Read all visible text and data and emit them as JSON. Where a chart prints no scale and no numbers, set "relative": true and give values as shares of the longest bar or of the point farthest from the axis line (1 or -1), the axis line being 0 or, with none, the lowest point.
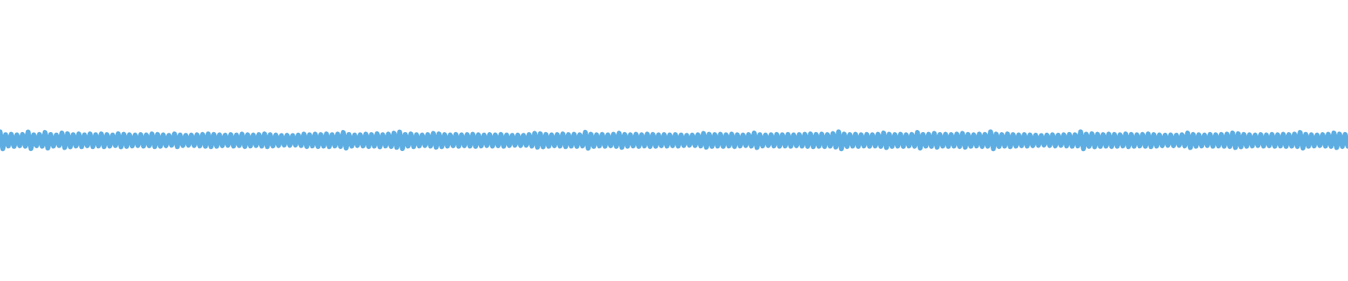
{
  "chart_data": {
    "type": "line",
    "relative": true,
    "tick_labels": false,
    "color": "#5dade2",
    "categories": [
      null,
      null,
      null,
      null,
      null,
      null,
      null,
      null,
      null,
      null,
      null,
      null,
      null,
      null,
      null,
      null,
      null,
      null,
      null,
      null,
      null,
      null,
      null,
      null,
      null,
      null,
      null,
      null,
      null,
      null,
      null,
      null,
      null,
      null,
      null,
      null,
      null,
      null,
      null,
      null,
      null,
      null,
      null,
      null,
      null,
      null,
      null,
      null,
      null,
      null,
      null,
      null,
      null,
      null,
      null,
      null,
      null,
      null,
      null,
      null,
      null,
      null,
      null,
      null,
      null,
      null,
      null,
      null,
      null,
      null,
      null,
      null,
      null,
      null,
      null,
      null,
      null,
      null,
      null,
      null,
      null,
      null,
      null,
      null,
      null,
      null,
      null,
      null,
      null,
      null,
      null,
      null,
      null,
      null,
      null,
      null,
      null,
      null,
      null,
      null,
      null,
      null,
      null,
      null,
      null,
      null,
      null,
      null,
      null,
      null,
      null,
      null,
      null,
      null,
      null,
      null,
      null,
      null,
      null,
      null,
      null,
      null,
      null,
      null,
      null,
      null,
      null,
      null,
      null,
      null,
      null,
      null,
      null,
      null,
      null,
      null,
      null,
      null,
      null,
      null,
      null,
      null,
      null,
      null,
      null,
      null,
      null,
      null,
      null,
      null,
      null,
      null,
      null,
      null,
      null,
      null,
      null,
      null,
      null,
      null,
      null,
      null,
      null,
      null,
      null,
      null,
      null,
      null,
      null,
      null,
      null,
      null,
      null,
      null,
      null,
      null,
      null,
      null,
      null,
      null,
      null,
      null,
      null,
      null,
      null,
      null,
      null,
      null,
      null,
      null,
      null,
      null,
      null,
      null,
      null,
      null,
      null,
      null,
      null,
      null,
      null,
      null,
      null,
      null,
      null,
      null,
      null,
      null,
      null,
      null,
      null,
      null,
      null,
      null,
      null,
      null,
      null,
      null,
      null,
      null,
      null,
      null,
      null,
      null,
      null,
      null,
      null,
      null,
      null,
      null,
      null,
      null,
      null,
      null,
      null,
      null,
      null,
      null,
      null,
      null,
      null,
      null,
      null,
      null,
      null,
      null,
      null,
      null,
      null,
      null,
      null,
      null,
      null,
      null,
      null,
      null,
      null,
      null,
      null,
      null,
      null,
      null,
      null,
      null,
      null,
      null,
      null,
      null,
      null,
      null,
      null,
      null,
      null,
      null,
      null,
      null,
      null,
      null,
      null,
      null,
      null,
      null,
      null,
      null,
      null,
      null,
      null,
      null,
      null,
      null,
      null,
      null,
      null,
      null,
      null,
      null,
      null,
      null,
      null,
      null,
      null,
      null,
      null,
      null,
      null,
      null,
      null,
      null,
      null,
      null,
      null,
      null,
      null,
      null,
      null,
      null,
      null,
      null,
      null,
      null,
      null,
      null,
      null,
      null,
      null,
      null,
      null,
      null,
      null,
      null,
      null,
      null,
      null,
      null,
      null,
      null,
      null,
      null,
      null,
      null,
      null,
      null,
      null,
      null,
      null,
      null,
      null,
      null,
      null,
      null,
      null,
      null,
      null,
      null,
      null,
      null,
      null,
      null,
      null,
      null,
      null,
      null,
      null,
      null,
      null,
      null,
      null,
      null,
      null,
      null,
      null,
      null,
      null,
      null,
      null,
      null,
      null,
      null,
      null,
      null,
      null,
      null,
      null,
      null,
      null,
      null,
      null,
      null,
      null,
      null,
      null,
      null,
      null,
      null,
      null,
      null,
      null,
      null,
      null,
      null,
      null,
      null,
      null,
      null,
      null,
      null,
      null,
      null,
      null,
      null,
      null,
      null,
      null,
      null,
      null,
      null,
      null,
      null,
      null,
      null,
      null,
      null,
      null,
      null,
      null,
      null,
      null,
      null,
      null,
      null,
      null,
      null,
      null,
      null,
      null,
      null,
      null,
      null,
      null,
      null,
      null,
      null,
      null,
      null,
      null,
      null,
      null,
      null,
      null,
      null,
      null,
      null,
      null,
      null,
      null,
      null,
      null,
      null,
      null,
      null,
      null,
      null,
      null,
      null,
      null,
      null,
      null,
      null,
      null,
      null,
      null,
      null,
      null,
      null,
      null,
      null,
      null,
      null,
      null,
      null
    ],
    "values": [
      1,
      0,
      0.83,
      0.17,
      0.86,
      0.14,
      0.82,
      0.18,
      0.85,
      0.15,
      0.99,
      0.01,
      0.82,
      0.18,
      0.85,
      0.15,
      0.96,
      0.04,
      0.84,
      0.16,
      0.81,
      0.19,
      0.93,
      0.07,
      0.89,
      0.11,
      0.83,
      0.17,
      0.88,
      0.12,
      0.82,
      0.18,
      0.88,
      0.12,
      0.83,
      0.17,
      0.88,
      0.12,
      0.84,
      0.16,
      0.81,
      0.19,
      0.89,
      0.11,
      0.86,
      0.14,
      0.83,
      0.17,
      0.81,
      0.19,
      0.84,
      0.16,
      0.82,
      0.18,
      0.88,
      0.12,
      0.85,
      0.15,
      0.82,
      0.18,
      0.79,
      0.21,
      0.88,
      0.12,
      0.81,
      0.19,
      0.79,
      0.21,
      0.81,
      0.19,
      0.83,
      0.17,
      0.85,
      0.15,
      0.88,
      0.12,
      0.85,
      0.15,
      0.82,
      0.18,
      0.8,
      0.2,
      0.84,
      0.16,
      0.81,
      0.19,
      0.87,
      0.13,
      0.83,
      0.17,
      0.81,
      0.19,
      0.84,
      0.16,
      0.88,
      0.12,
      0.83,
      0.17,
      0.81,
      0.19,
      0.78,
      0.22,
      0.8,
      0.2,
      0.78,
      0.22,
      0.81,
      0.19,
      0.87,
      0.13,
      0.83,
      0.17,
      0.87,
      0.13,
      0.84,
      0.16,
      0.88,
      0.12,
      0.83,
      0.17,
      0.87,
      0.13,
      0.96,
      0.04,
      0.84,
      0.16,
      0.81,
      0.19,
      0.83,
      0.17,
      0.87,
      0.13,
      0.84,
      0.16,
      0.89,
      0.11,
      0.83,
      0.17,
      0.87,
      0.13,
      0.92,
      0.08,
      0.99,
      0.01,
      0.84,
      0.16,
      0.88,
      0.12,
      0.83,
      0.17,
      0.81,
      0.19,
      0.84,
      0.16,
      0.91,
      0.09,
      0.88,
      0.12,
      0.84,
      0.16,
      0.82,
      0.18,
      0.85,
      0.15,
      0.82,
      0.18,
      0.84,
      0.16,
      0.86,
      0.14,
      0.83,
      0.17,
      0.81,
      0.19,
      0.84,
      0.16,
      0.82,
      0.18,
      0.85,
      0.15,
      0.81,
      0.19,
      0.79,
      0.21,
      0.81,
      0.19,
      0.79,
      0.21,
      0.84,
      0.16,
      0.91,
      0.09,
      0.89,
      0.11,
      0.85,
      0.15,
      0.82,
      0.18,
      0.84,
      0.16,
      0.88,
      0.12,
      0.84,
      0.16,
      0.86,
      0.14,
      0.83,
      0.17,
      0.97,
      0.03,
      0.86,
      0.14,
      0.83,
      0.17,
      0.85,
      0.15,
      0.82,
      0.18,
      0.86,
      0.14,
      0.92,
      0.08,
      0.85,
      0.15,
      0.83,
      0.17,
      0.86,
      0.14,
      0.83,
      0.17,
      0.87,
      0.13,
      0.85,
      0.15,
      0.82,
      0.18,
      0.84,
      0.16,
      0.82,
      0.18,
      0.84,
      0.16,
      0.81,
      0.19,
      0.79,
      0.21,
      0.81,
      0.19,
      0.83,
      0.17,
      0.91,
      0.09,
      0.86,
      0.14,
      0.84,
      0.16,
      0.86,
      0.14,
      0.83,
      0.17,
      0.87,
      0.13,
      0.83,
      0.17,
      0.81,
      0.19,
      0.84,
      0.16,
      0.93,
      0.07,
      0.83,
      0.17,
      0.81,
      0.19,
      0.83,
      0.17,
      0.85,
      0.15,
      0.83,
      0.17,
      0.85,
      0.15,
      0.82,
      0.18,
      0.84,
      0.16,
      0.86,
      0.14,
      0.88,
      0.12,
      0.85,
      0.15,
      0.87,
      0.13,
      0.84,
      0.16,
      0.9,
      0.1,
      1,
      0,
      0.87,
      0.13,
      0.84,
      0.16,
      0.86,
      0.14,
      0.83,
      0.17,
      0.85,
      0.15,
      0.83,
      0.17,
      0.86,
      0.14,
      0.93,
      0.07,
      0.86,
      0.14,
      0.84,
      0.16,
      0.86,
      0.14,
      0.83,
      0.17,
      0.85,
      0.15,
      0.96,
      0.04,
      0.84,
      0.16,
      0.86,
      0.14,
      0.91,
      0.09,
      0.84,
      0.16,
      0.86,
      0.14,
      0.84,
      0.16,
      0.87,
      0.13,
      0.91,
      0.09,
      0.85,
      0.15,
      0.83,
      0.17,
      0.87,
      0.13,
      0.85,
      0.15,
      1,
      0,
      0.87,
      0.13,
      0.84,
      0.16,
      0.88,
      0.12,
      0.84,
      0.16,
      0.82,
      0.18,
      0.84,
      0.16,
      0.82,
      0.18,
      0.8,
      0.2,
      0.78,
      0.22,
      0.81,
      0.19,
      0.83,
      0.17,
      0.8,
      0.2,
      0.83,
      0.17,
      0.85,
      0.15,
      0.83,
      0.17,
      1,
      0,
      0.86,
      0.14,
      0.89,
      0.11,
      0.86,
      0.14,
      0.84,
      0.16,
      0.87,
      0.13,
      0.85,
      0.15,
      0.83,
      0.17,
      0.88,
      0.12,
      0.85,
      0.15,
      0.83,
      0.17,
      0.85,
      0.15,
      0.88,
      0.12,
      0.84,
      0.16,
      0.82,
      0.18,
      0.8,
      0.2,
      0.82,
      0.18,
      0.8,
      0.2,
      0.83,
      0.17,
      0.93,
      0.07,
      0.85,
      0.15,
      0.83,
      0.17,
      0.81,
      0.19,
      0.85,
      0.15,
      0.83,
      0.17,
      0.85,
      0.15,
      0.87,
      0.13,
      0.93,
      0.07,
      0.89,
      0.11,
      0.85,
      0.15,
      0.83,
      0.17,
      0.81,
      0.19,
      0.84,
      0.16,
      0.82,
      0.18,
      0.85,
      0.15,
      0.83,
      0.17,
      0.86,
      0.14,
      0.84,
      0.16,
      0.87,
      0.13,
      0.96,
      0.04,
      0.85,
      0.15,
      0.83,
      0.17,
      0.81,
      0.19,
      0.84,
      0.16,
      0.86,
      0.14,
      0.93,
      0.07,
      0.87,
      0.13,
      0.85,
      0.15
    ]
  }
}
